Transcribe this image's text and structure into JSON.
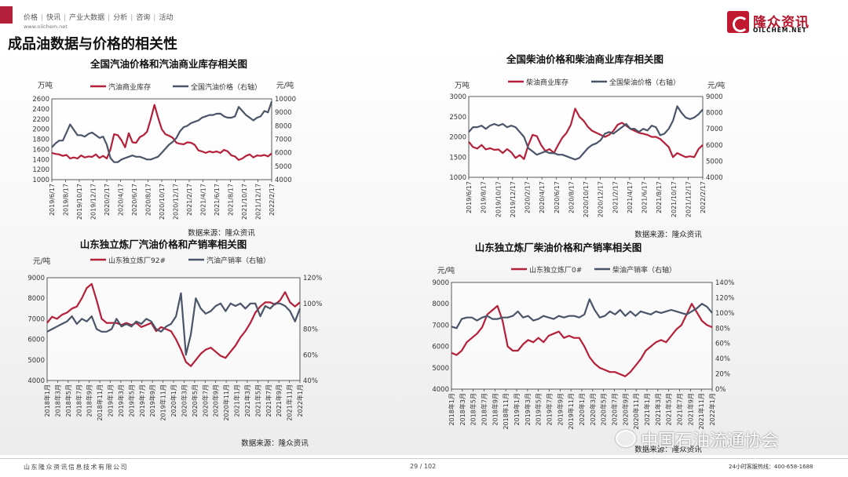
{
  "header": {
    "nav_items": [
      "价格",
      "快讯",
      "产业大数据",
      "分析",
      "咨询",
      "活动"
    ],
    "nav_sep": "|",
    "site_url": "www.oilchem.net",
    "page_title": "成品油数据与价格的相关性",
    "logo_cn": "隆众资讯",
    "logo_en": "OILCHEM.NET"
  },
  "footer": {
    "company": "山东隆众资讯信息技术有限公司",
    "page": "29 / 102",
    "hotline": "24小时客服热线：400-658-1688",
    "watermark": "中国石油流通协会"
  },
  "colors": {
    "red": "#b4203a",
    "gray": "#4a5568",
    "accent": "#b4182e"
  },
  "chart_data": [
    {
      "type": "line",
      "title": "全国汽油价格和汽油商业库存相关图",
      "left_unit": "万吨",
      "right_unit": "元/吨",
      "source": "数据来源：隆众资讯",
      "x_ticks": [
        "2019/6/17",
        "2019/8/17",
        "2019/10/17",
        "2019/12/17",
        "2020/2/17",
        "2020/4/17",
        "2020/6/17",
        "2020/8/17",
        "2020/10/17",
        "2020/12/17",
        "2021/2/17",
        "2021/4/17",
        "2021/6/17",
        "2021/8/17",
        "2021/10/17",
        "2021/12/17",
        "2022/2/17"
      ],
      "y_left": {
        "min": 1000,
        "max": 2600,
        "ticks": [
          1000,
          1200,
          1400,
          1600,
          1800,
          2000,
          2200,
          2400,
          2600
        ]
      },
      "y_right": {
        "min": 4000,
        "max": 10000,
        "ticks": [
          4000,
          5000,
          6000,
          7000,
          8000,
          9000,
          10000
        ]
      },
      "series": [
        {
          "name": "汽油商业库存",
          "axis": "left",
          "color": "#b4203a",
          "values": [
            1530,
            1510,
            1500,
            1470,
            1490,
            1420,
            1440,
            1420,
            1480,
            1440,
            1460,
            1450,
            1500,
            1430,
            1470,
            1420,
            1600,
            1900,
            1880,
            1780,
            1640,
            1920,
            1740,
            1730,
            1840,
            1880,
            1950,
            2200,
            2480,
            2230,
            2000,
            1900,
            1870,
            1830,
            1730,
            1710,
            1700,
            1740,
            1730,
            1690,
            1580,
            1560,
            1530,
            1560,
            1540,
            1560,
            1530,
            1590,
            1560,
            1480,
            1460,
            1390,
            1420,
            1470,
            1500,
            1440,
            1480,
            1470,
            1490,
            1460,
            1520
          ]
        },
        {
          "name": "全国汽油价格（右轴）",
          "axis": "right",
          "color": "#4a5568",
          "values": [
            6400,
            6700,
            6900,
            6900,
            7500,
            8100,
            7700,
            7300,
            7300,
            7200,
            7400,
            7500,
            7300,
            7100,
            7200,
            6600,
            5600,
            5300,
            5300,
            5500,
            5600,
            5700,
            5800,
            5700,
            5700,
            5600,
            5500,
            5500,
            5600,
            5700,
            6000,
            6300,
            6600,
            6800,
            7100,
            7600,
            7900,
            8000,
            8200,
            8300,
            8400,
            8600,
            8700,
            8800,
            8800,
            8900,
            8900,
            8700,
            8600,
            8600,
            8700,
            9400,
            9100,
            8800,
            8600,
            8400,
            8600,
            8700,
            9100,
            9000,
            9800
          ]
        }
      ]
    },
    {
      "type": "line",
      "title": "全国柴油价格和柴油商业库存相关图",
      "left_unit": "万吨",
      "right_unit": "元/吨",
      "source": "数据来源：隆众资讯",
      "x_ticks": [
        "2019/6/17",
        "2019/8/17",
        "2019/10/17",
        "2019/12/17",
        "2020/2/17",
        "2020/4/17",
        "2020/6/17",
        "2020/8/17",
        "2020/10/17",
        "2020/12/17",
        "2021/2/17",
        "2021/4/17",
        "2021/6/17",
        "2021/8/17",
        "2021/10/17",
        "2021/12/17",
        "2022/2/17"
      ],
      "y_left": {
        "min": 1000,
        "max": 3000,
        "ticks": [
          1000,
          1500,
          2000,
          2500,
          3000
        ]
      },
      "y_right": {
        "min": 4000,
        "max": 9000,
        "ticks": [
          4000,
          5000,
          6000,
          7000,
          8000,
          9000
        ]
      },
      "series": [
        {
          "name": "柴油商业库存",
          "axis": "left",
          "color": "#b4203a",
          "values": [
            1880,
            1750,
            1710,
            1800,
            1690,
            1720,
            1680,
            1690,
            1600,
            1700,
            1620,
            1480,
            1550,
            1450,
            1800,
            2050,
            2020,
            1800,
            1650,
            1700,
            1600,
            1800,
            1980,
            2100,
            2300,
            2700,
            2500,
            2400,
            2250,
            2150,
            2100,
            2050,
            2000,
            2050,
            2150,
            2300,
            2350,
            2280,
            2200,
            2150,
            2100,
            2080,
            2050,
            2000,
            2000,
            1950,
            1850,
            1750,
            1500,
            1600,
            1550,
            1500,
            1520,
            1500,
            1700,
            1800
          ]
        },
        {
          "name": "全国柴油价格（右轴）",
          "axis": "right",
          "color": "#4a5568",
          "values": [
            6800,
            7100,
            7100,
            7200,
            7000,
            7200,
            7300,
            7200,
            7300,
            7100,
            7200,
            7100,
            6800,
            6500,
            5800,
            5600,
            5400,
            5500,
            5600,
            5500,
            5500,
            5400,
            5400,
            5300,
            5200,
            5100,
            5200,
            5500,
            5800,
            6000,
            6100,
            6300,
            6700,
            6800,
            6700,
            6900,
            7100,
            7300,
            7000,
            7000,
            6800,
            7000,
            6900,
            7200,
            7100,
            6600,
            6700,
            7000,
            7500,
            8400,
            8000,
            7700,
            7600,
            7700,
            7900,
            8200
          ]
        }
      ]
    },
    {
      "type": "line",
      "title": "山东独立炼厂汽油价格和产销率相关图",
      "left_unit": "元/吨",
      "right_unit": "",
      "source": "数据来源：隆众资讯",
      "x_ticks": [
        "2018年1月",
        "2018年3月",
        "2018年5月",
        "2018年7月",
        "2018年9月",
        "2018年11月",
        "2019年1月",
        "2019年3月",
        "2019年5月",
        "2019年7月",
        "2019年9月",
        "2019年11月",
        "2020年1月",
        "2020年3月",
        "2020年5月",
        "2020年7月",
        "2020年9月",
        "2020年11月",
        "2021年1月",
        "2021年3月",
        "2021年5月",
        "2021年7月",
        "2021年9月",
        "2021年11月",
        "2022年1月"
      ],
      "y_left": {
        "min": 4000,
        "max": 9000,
        "ticks": [
          4000,
          5000,
          6000,
          7000,
          8000,
          9000
        ]
      },
      "y_right": {
        "min": 40,
        "max": 120,
        "ticks": [
          40,
          60,
          80,
          100,
          120
        ],
        "suffix": "%"
      },
      "series": [
        {
          "name": "山东独立炼厂92#",
          "axis": "left",
          "color": "#b4203a",
          "values": [
            6800,
            7100,
            7000,
            7200,
            7300,
            7500,
            7600,
            8000,
            8500,
            8700,
            7900,
            7000,
            6800,
            6800,
            6800,
            6700,
            6800,
            6700,
            6800,
            6600,
            6700,
            6800,
            6400,
            6600,
            6500,
            6400,
            6000,
            5500,
            4900,
            4700,
            5000,
            5300,
            5500,
            5600,
            5400,
            5200,
            5100,
            5400,
            5700,
            6100,
            6400,
            6800,
            7300,
            7600,
            7800,
            7800,
            7700,
            7900,
            8300,
            7800,
            7600,
            7800
          ]
        },
        {
          "name": "汽油产销率（右轴）",
          "axis": "right",
          "color": "#4a5568",
          "values": [
            78,
            80,
            82,
            84,
            86,
            90,
            84,
            88,
            86,
            90,
            80,
            78,
            78,
            80,
            88,
            82,
            84,
            82,
            86,
            84,
            88,
            86,
            80,
            78,
            82,
            84,
            90,
            108,
            60,
            76,
            104,
            96,
            92,
            94,
            98,
            100,
            94,
            100,
            98,
            100,
            96,
            100,
            100,
            90,
            98,
            96,
            100,
            100,
            98,
            94,
            86,
            96
          ]
        }
      ]
    },
    {
      "type": "line",
      "title": "山东独立炼厂柴油价格和产销率相关图",
      "left_unit": "元/吨",
      "right_unit": "",
      "source": "数据来源：隆众资讯",
      "x_ticks": [
        "2018年1月",
        "2018年3月",
        "2018年5月",
        "2018年7月",
        "2018年9月",
        "2018年11月",
        "2019年1月",
        "2019年3月",
        "2019年5月",
        "2019年7月",
        "2019年9月",
        "2019年11月",
        "2020年1月",
        "2020年3月",
        "2020年5月",
        "2020年7月",
        "2020年9月",
        "2020年11月",
        "2021年1月",
        "2021年3月",
        "2021年5月",
        "2021年7月",
        "2021年9月",
        "2021年11月",
        "2022年1月"
      ],
      "y_left": {
        "min": 4000,
        "max": 9000,
        "ticks": [
          4000,
          5000,
          6000,
          7000,
          8000,
          9000
        ]
      },
      "y_right": {
        "min": 0,
        "max": 140,
        "ticks": [
          0,
          20,
          40,
          60,
          80,
          100,
          120,
          140
        ],
        "suffix": "%"
      },
      "series": [
        {
          "name": "山东独立炼厂0#",
          "axis": "left",
          "color": "#b4203a",
          "values": [
            5700,
            5600,
            5800,
            6200,
            6400,
            6600,
            6900,
            7500,
            7700,
            7900,
            7200,
            6000,
            5800,
            5800,
            6100,
            6300,
            6200,
            6400,
            6200,
            6500,
            6600,
            6700,
            6400,
            6500,
            6400,
            6400,
            6000,
            5500,
            5200,
            5000,
            4900,
            4800,
            4800,
            4700,
            4600,
            4800,
            5100,
            5400,
            5800,
            6000,
            6200,
            6300,
            6200,
            6500,
            6800,
            7000,
            7500,
            8000,
            7600,
            7200,
            7000,
            6900
          ]
        },
        {
          "name": "柴油产销率（右轴）",
          "axis": "right",
          "color": "#4a5568",
          "values": [
            82,
            80,
            92,
            94,
            94,
            90,
            94,
            96,
            92,
            92,
            94,
            94,
            96,
            102,
            94,
            96,
            90,
            92,
            96,
            94,
            92,
            96,
            94,
            96,
            96,
            94,
            98,
            118,
            104,
            94,
            96,
            102,
            98,
            104,
            96,
            102,
            96,
            102,
            100,
            98,
            102,
            100,
            102,
            104,
            102,
            100,
            98,
            102,
            106,
            112,
            108,
            100
          ]
        }
      ]
    }
  ]
}
